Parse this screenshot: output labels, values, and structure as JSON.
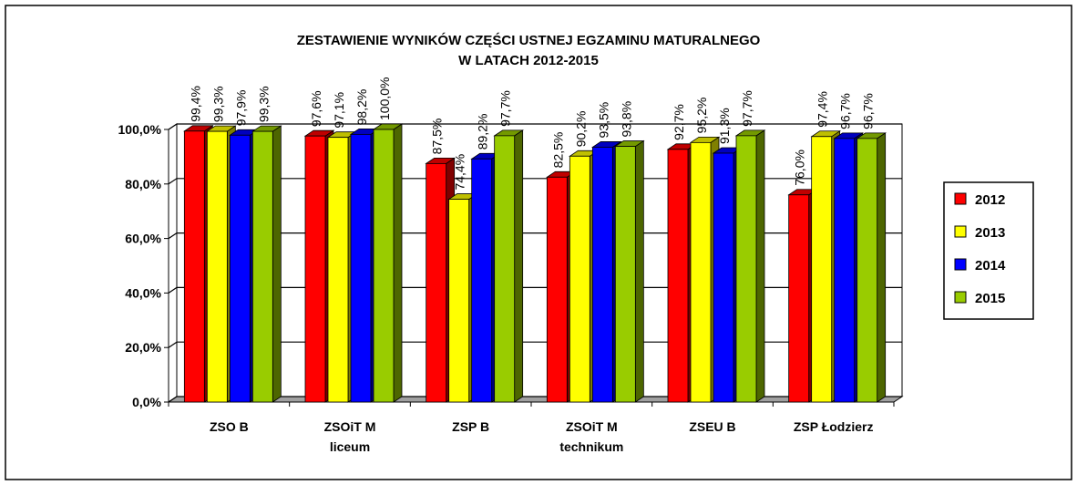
{
  "chart_data": {
    "type": "bar3d",
    "title": "ZESTAWIENIE WYNIKÓW CZĘŚCI USTNEJ EGZAMINU MATURALNEGO\nW LATACH 2012-2015",
    "categories": [
      "ZSO B",
      "ZSOiT M\nliceum",
      "ZSP B",
      "ZSOiT M\ntechnikum",
      "ZSEU B",
      "ZSP Łodzierz"
    ],
    "series": [
      {
        "name": "2012",
        "color": "#ff0000",
        "values": [
          99.4,
          97.6,
          87.5,
          82.5,
          92.7,
          76.0
        ],
        "value_labels": [
          "99,4%",
          "97,6%",
          "87,5%",
          "82,5%",
          "92,7%",
          "76,0%"
        ]
      },
      {
        "name": "2013",
        "color": "#ffff00",
        "values": [
          99.3,
          97.1,
          74.4,
          90.2,
          95.2,
          97.4
        ],
        "value_labels": [
          "99,3%",
          "97,1%",
          "74,4%",
          "90,2%",
          "95,2%",
          "97,4%"
        ]
      },
      {
        "name": "2014",
        "color": "#0000ff",
        "values": [
          97.9,
          98.2,
          89.2,
          93.5,
          91.3,
          96.7
        ],
        "value_labels": [
          "97,9%",
          "98,2%",
          "89,2%",
          "93,5%",
          "91,3%",
          "96,7%"
        ]
      },
      {
        "name": "2015",
        "color": "#99cc00",
        "values": [
          99.3,
          100.0,
          97.7,
          93.8,
          97.7,
          96.7
        ],
        "value_labels": [
          "99,3%",
          "100,0%",
          "97,7%",
          "93,8%",
          "97,7%",
          "96,7%"
        ]
      }
    ],
    "ylim": [
      0,
      100
    ],
    "yticks": [
      {
        "value": 0,
        "label": "0,0%"
      },
      {
        "value": 20,
        "label": "20,0%"
      },
      {
        "value": 40,
        "label": "40,0%"
      },
      {
        "value": 60,
        "label": "60,0%"
      },
      {
        "value": 80,
        "label": "80,0%"
      },
      {
        "value": 100,
        "label": "100,0%"
      }
    ],
    "grid": true,
    "legend": "right"
  }
}
